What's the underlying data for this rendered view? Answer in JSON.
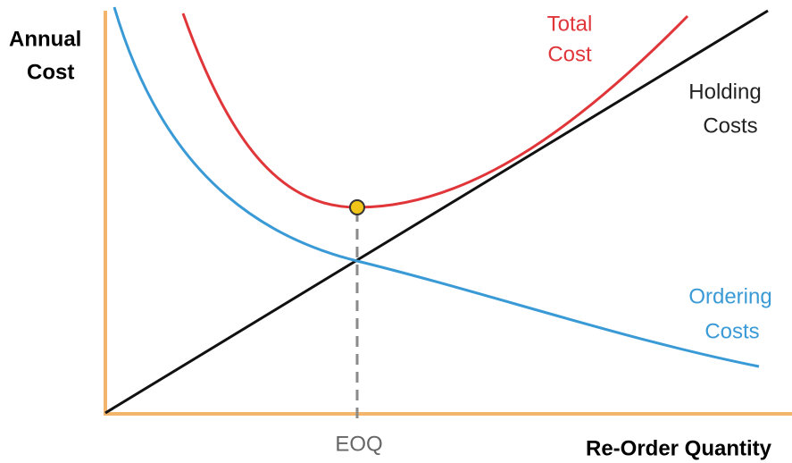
{
  "y_axis_label": [
    "Annual",
    "Cost"
  ],
  "x_axis_label": "Re-Order Quantity",
  "eoq_label": "EOQ",
  "curves": [
    {
      "lines": [
        "Total",
        "Cost"
      ]
    },
    {
      "lines": [
        "Holding",
        "Costs"
      ]
    },
    {
      "lines": [
        "Ordering",
        "Costs"
      ]
    }
  ]
}
